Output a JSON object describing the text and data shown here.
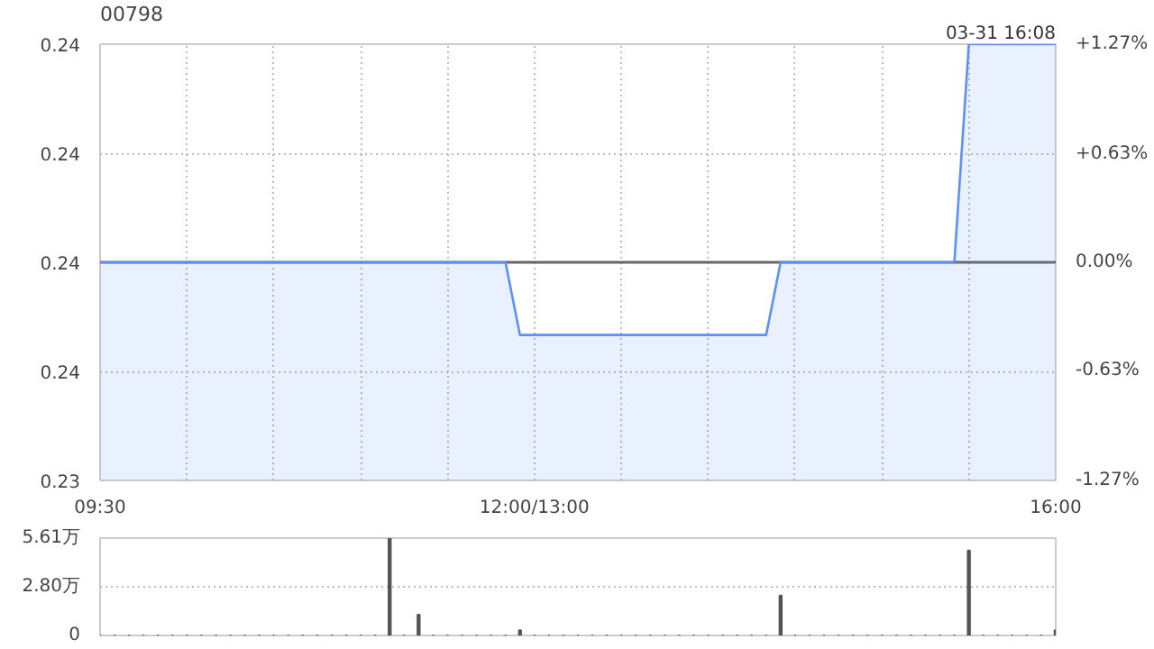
{
  "chart_data": [
    {
      "type": "area",
      "title": "00798",
      "annotations": [
        "03-31 16:08"
      ],
      "categories": [
        "09:30",
        null,
        null,
        null,
        null,
        null,
        null,
        null,
        null,
        null,
        null,
        null,
        null,
        null,
        null,
        null,
        null,
        null,
        null,
        null,
        null,
        null,
        null,
        null,
        null,
        null,
        null,
        null,
        null,
        null,
        "12:00/13:00",
        null,
        null,
        null,
        null,
        null,
        null,
        null,
        null,
        null,
        null,
        null,
        null,
        null,
        null,
        null,
        null,
        null,
        null,
        null,
        null,
        null,
        null,
        null,
        null,
        null,
        null,
        null,
        null,
        null,
        null,
        null,
        null,
        null,
        null,
        null,
        "16:00"
      ],
      "series": [
        {
          "color": "#5b8ff9",
          "values": [
            0.237,
            0.237,
            0.237,
            0.237,
            0.237,
            0.237,
            0.237,
            0.237,
            0.237,
            0.237,
            0.237,
            0.237,
            0.237,
            0.237,
            0.237,
            0.237,
            0.237,
            0.237,
            0.237,
            0.237,
            0.237,
            0.237,
            0.237,
            0.237,
            0.237,
            0.237,
            0.237,
            0.237,
            0.237,
            0.236,
            0.236,
            0.236,
            0.236,
            0.236,
            0.236,
            0.236,
            0.236,
            0.236,
            0.236,
            0.236,
            0.236,
            0.236,
            0.236,
            0.236,
            0.236,
            0.236,
            0.236,
            0.237,
            0.237,
            0.237,
            0.237,
            0.237,
            0.237,
            0.237,
            0.237,
            0.237,
            0.237,
            0.237,
            0.237,
            0.237,
            0.24,
            0.24,
            0.24,
            0.24,
            0.24,
            0.24,
            0.24
          ]
        }
      ],
      "ylim": [
        0.234,
        0.24
      ],
      "yticks": [
        {
          "value": 0.234,
          "label": "0.23"
        },
        {
          "value": 0.2355,
          "label": "0.24"
        },
        {
          "value": 0.237,
          "label": "0.24"
        },
        {
          "value": 0.2385,
          "label": "0.24"
        },
        {
          "value": 0.24,
          "label": "0.24"
        }
      ],
      "y2lim": [
        -1.27,
        1.27
      ],
      "y2ticks": [
        {
          "value": -1.27,
          "label": "-1.27%"
        },
        {
          "value": -0.63,
          "label": "-0.63%"
        },
        {
          "value": 0,
          "label": "0.00%"
        },
        {
          "value": 0.63,
          "label": "+0.63%"
        },
        {
          "value": 1.27,
          "label": "+1.27%"
        }
      ],
      "ref_lines": [
        {
          "axis": "y",
          "value": 0.237,
          "color": "#666666"
        }
      ],
      "grid": true
    },
    {
      "type": "bar",
      "categories": [
        null,
        null,
        null,
        null,
        null,
        null,
        null,
        null,
        null,
        null,
        null,
        null,
        null,
        null,
        null,
        null,
        null,
        null,
        null,
        null,
        null,
        null,
        null,
        null,
        null,
        null,
        null,
        null,
        null,
        null,
        null,
        null,
        null,
        null,
        null,
        null,
        null,
        null,
        null,
        null,
        null,
        null,
        null,
        null,
        null,
        null,
        null,
        null,
        null,
        null,
        null,
        null,
        null,
        null,
        null,
        null,
        null,
        null,
        null,
        null,
        null,
        null,
        null,
        null,
        null,
        null,
        null
      ],
      "series": [
        {
          "color": "#555555",
          "values": [
            0,
            0,
            0,
            0,
            0,
            0,
            0,
            0,
            0,
            0,
            0,
            0,
            0,
            0,
            0,
            0,
            0,
            0,
            0,
            0,
            5.6,
            0,
            1.2,
            0,
            0,
            0,
            0,
            0,
            0,
            0.3,
            0,
            0,
            0,
            0,
            0,
            0,
            0,
            0,
            0,
            0,
            0,
            0,
            0,
            0,
            0,
            0,
            0,
            2.3,
            0,
            0,
            0,
            0,
            0,
            0,
            0,
            0,
            0,
            0,
            0,
            0,
            4.9,
            0,
            0,
            0,
            0,
            0,
            0.3
          ]
        }
      ],
      "ylim": [
        0,
        5.61
      ],
      "yticks": [
        0,
        {
          "value": 2.8,
          "label": "2.80万"
        },
        {
          "value": 5.61,
          "label": "5.61万"
        }
      ],
      "tick_labels": "y",
      "grid": "y"
    }
  ]
}
